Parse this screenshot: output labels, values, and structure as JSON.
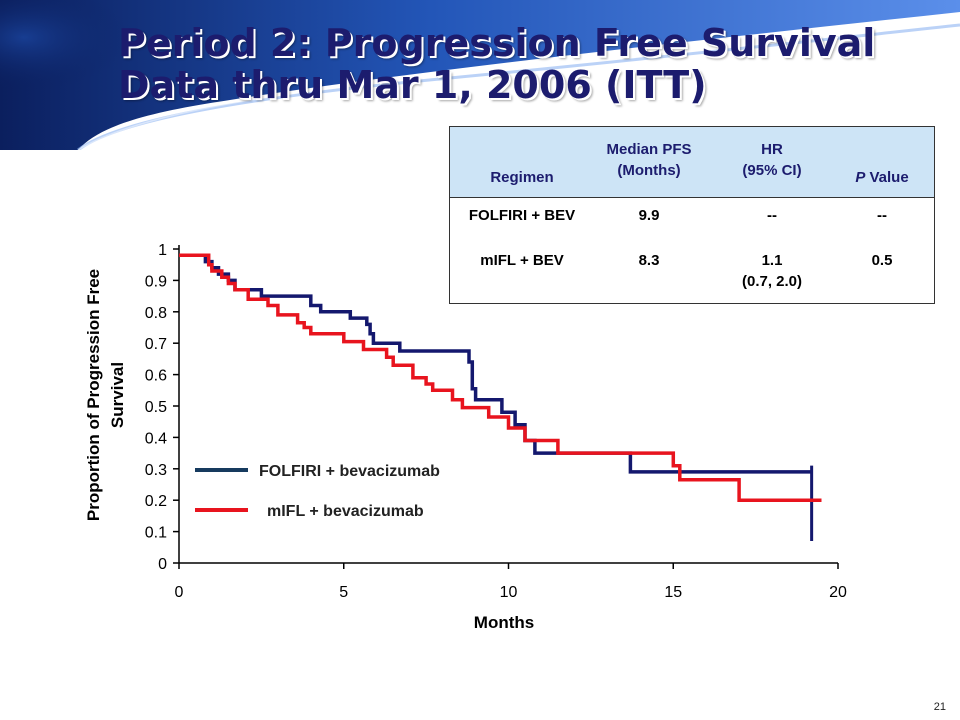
{
  "slide": {
    "title_line1": "Period 2: Progression Free Survival",
    "title_line2": "Data thru Mar 1, 2006 (ITT)",
    "page_number": "21"
  },
  "table": {
    "headers": {
      "regimen": "Regimen",
      "median_pfs_line1": "Median PFS",
      "median_pfs_line2": "(Months)",
      "hr_line1": "HR",
      "hr_line2": "(95% CI)",
      "p_value_italic": "P",
      "p_value_rest": " Value"
    },
    "rows": [
      {
        "regimen": "FOLFIRI + BEV",
        "median": "9.9",
        "hr": "--",
        "hr_ci": "",
        "p": "--"
      },
      {
        "regimen": "mIFL + BEV",
        "median": "8.3",
        "hr": "1.1",
        "hr_ci": "(0.7, 2.0)",
        "p": "0.5"
      }
    ]
  },
  "chart_data": {
    "type": "line",
    "step": true,
    "xlabel": "Months",
    "ylabel_line1": "Proportion of Progression Free",
    "ylabel_line2": "Survival",
    "xlim": [
      0,
      20
    ],
    "ylim": [
      0,
      1
    ],
    "xticks": [
      "0",
      "5",
      "10",
      "15",
      "20"
    ],
    "yticks": [
      "0",
      "0.1",
      "0.2",
      "0.3",
      "0.4",
      "0.5",
      "0.6",
      "0.7",
      "0.8",
      "0.9",
      "1"
    ],
    "grid": false,
    "legend_placement": "lower-left",
    "series": [
      {
        "name": "FOLFIRI + bevacizumab",
        "color": "#14186e",
        "end_drop_to": 0.07,
        "points": [
          [
            0,
            0.98
          ],
          [
            0.8,
            0.98
          ],
          [
            0.8,
            0.96
          ],
          [
            1.0,
            0.96
          ],
          [
            1.0,
            0.94
          ],
          [
            1.2,
            0.94
          ],
          [
            1.2,
            0.92
          ],
          [
            1.5,
            0.92
          ],
          [
            1.5,
            0.9
          ],
          [
            1.7,
            0.9
          ],
          [
            1.7,
            0.87
          ],
          [
            2.5,
            0.87
          ],
          [
            2.5,
            0.85
          ],
          [
            4.0,
            0.85
          ],
          [
            4.0,
            0.82
          ],
          [
            4.3,
            0.82
          ],
          [
            4.3,
            0.8
          ],
          [
            5.2,
            0.8
          ],
          [
            5.2,
            0.78
          ],
          [
            5.7,
            0.78
          ],
          [
            5.7,
            0.76
          ],
          [
            5.8,
            0.76
          ],
          [
            5.8,
            0.73
          ],
          [
            5.9,
            0.73
          ],
          [
            5.9,
            0.7
          ],
          [
            6.7,
            0.7
          ],
          [
            6.7,
            0.675
          ],
          [
            8.8,
            0.675
          ],
          [
            8.8,
            0.64
          ],
          [
            8.9,
            0.64
          ],
          [
            8.9,
            0.555
          ],
          [
            9.0,
            0.555
          ],
          [
            9.0,
            0.52
          ],
          [
            9.8,
            0.52
          ],
          [
            9.8,
            0.48
          ],
          [
            10.2,
            0.48
          ],
          [
            10.2,
            0.44
          ],
          [
            10.5,
            0.44
          ],
          [
            10.5,
            0.39
          ],
          [
            10.8,
            0.39
          ],
          [
            10.8,
            0.35
          ],
          [
            13.7,
            0.35
          ],
          [
            13.7,
            0.29
          ],
          [
            19.2,
            0.29
          ]
        ]
      },
      {
        "name": "mIFL + bevacizumab",
        "color": "#e8141e",
        "points": [
          [
            0,
            0.98
          ],
          [
            0.9,
            0.98
          ],
          [
            0.9,
            0.95
          ],
          [
            1.0,
            0.95
          ],
          [
            1.0,
            0.93
          ],
          [
            1.3,
            0.93
          ],
          [
            1.3,
            0.91
          ],
          [
            1.5,
            0.91
          ],
          [
            1.5,
            0.89
          ],
          [
            1.7,
            0.89
          ],
          [
            1.7,
            0.87
          ],
          [
            2.1,
            0.87
          ],
          [
            2.1,
            0.84
          ],
          [
            2.7,
            0.84
          ],
          [
            2.7,
            0.82
          ],
          [
            3.0,
            0.82
          ],
          [
            3.0,
            0.79
          ],
          [
            3.6,
            0.79
          ],
          [
            3.6,
            0.765
          ],
          [
            3.8,
            0.765
          ],
          [
            3.8,
            0.75
          ],
          [
            4.0,
            0.75
          ],
          [
            4.0,
            0.73
          ],
          [
            5.0,
            0.73
          ],
          [
            5.0,
            0.705
          ],
          [
            5.6,
            0.705
          ],
          [
            5.6,
            0.68
          ],
          [
            6.3,
            0.68
          ],
          [
            6.3,
            0.655
          ],
          [
            6.5,
            0.655
          ],
          [
            6.5,
            0.63
          ],
          [
            7.1,
            0.63
          ],
          [
            7.1,
            0.59
          ],
          [
            7.5,
            0.59
          ],
          [
            7.5,
            0.57
          ],
          [
            7.7,
            0.57
          ],
          [
            7.7,
            0.55
          ],
          [
            8.3,
            0.55
          ],
          [
            8.3,
            0.52
          ],
          [
            8.6,
            0.52
          ],
          [
            8.6,
            0.495
          ],
          [
            9.4,
            0.495
          ],
          [
            9.4,
            0.465
          ],
          [
            10.0,
            0.465
          ],
          [
            10.0,
            0.43
          ],
          [
            10.5,
            0.43
          ],
          [
            10.5,
            0.39
          ],
          [
            11.5,
            0.39
          ],
          [
            11.5,
            0.35
          ],
          [
            15.0,
            0.35
          ],
          [
            15.0,
            0.31
          ],
          [
            15.2,
            0.31
          ],
          [
            15.2,
            0.265
          ],
          [
            17.0,
            0.265
          ],
          [
            17.0,
            0.2
          ],
          [
            19.5,
            0.2
          ]
        ]
      }
    ]
  }
}
